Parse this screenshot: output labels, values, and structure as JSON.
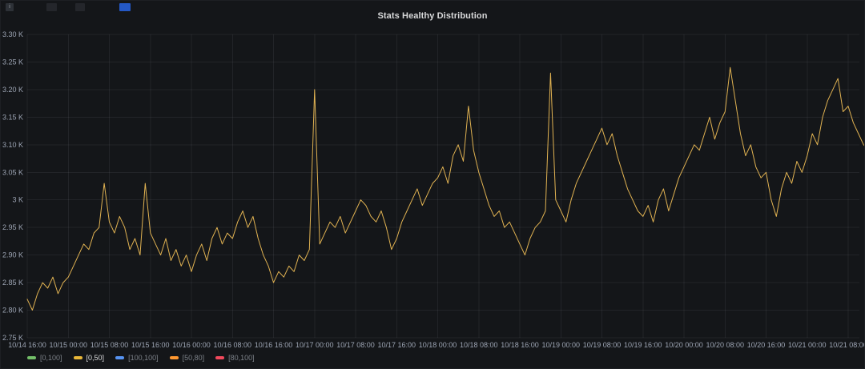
{
  "panel": {
    "title": "Stats Healthy Distribution",
    "chips": [
      {
        "label": "i",
        "color": "#2d3137"
      },
      {
        "label": "",
        "color": "#24262b"
      },
      {
        "label": "",
        "color": "#24262b"
      },
      {
        "label": "",
        "color": "#2458c5"
      }
    ]
  },
  "chart_data": {
    "type": "line",
    "title": "Stats Healthy Distribution",
    "xlabel": "",
    "ylabel": "",
    "grid": true,
    "legend_position": "bottom",
    "x_start": "10/14 16:00",
    "x_step_hours": 1,
    "x_tick_step_hours": 8,
    "x_tick_labels": [
      "10/14 16:00",
      "10/15 00:00",
      "10/15 08:00",
      "10/15 16:00",
      "10/16 00:00",
      "10/16 08:00",
      "10/16 16:00",
      "10/17 00:00",
      "10/17 08:00",
      "10/17 16:00",
      "10/18 00:00",
      "10/18 08:00",
      "10/18 16:00",
      "10/19 00:00",
      "10/19 08:00",
      "10/19 16:00",
      "10/20 00:00",
      "10/20 08:00",
      "10/20 16:00",
      "10/21 00:00",
      "10/21 08:00"
    ],
    "ylim": [
      2.75,
      3.3
    ],
    "y_tick_values": [
      2.75,
      2.8,
      2.85,
      2.9,
      2.95,
      3.0,
      3.05,
      3.1,
      3.15,
      3.2,
      3.25,
      3.3
    ],
    "y_tick_labels": [
      "2.75 K",
      "2.80 K",
      "2.85 K",
      "2.90 K",
      "2.95 K",
      "3 K",
      "3.05 K",
      "3.10 K",
      "3.15 K",
      "3.20 K",
      "3.25 K",
      "3.30 K"
    ],
    "series": [
      {
        "name": "[0,50]",
        "color": "#e0b252",
        "unit": "K",
        "values": [
          2.82,
          2.8,
          2.83,
          2.85,
          2.84,
          2.86,
          2.83,
          2.85,
          2.86,
          2.88,
          2.9,
          2.92,
          2.91,
          2.94,
          2.95,
          3.03,
          2.96,
          2.94,
          2.97,
          2.95,
          2.91,
          2.93,
          2.9,
          3.03,
          2.94,
          2.92,
          2.9,
          2.93,
          2.89,
          2.91,
          2.88,
          2.9,
          2.87,
          2.9,
          2.92,
          2.89,
          2.93,
          2.95,
          2.92,
          2.94,
          2.93,
          2.96,
          2.98,
          2.95,
          2.97,
          2.93,
          2.9,
          2.88,
          2.85,
          2.87,
          2.86,
          2.88,
          2.87,
          2.9,
          2.89,
          2.91,
          3.2,
          2.92,
          2.94,
          2.96,
          2.95,
          2.97,
          2.94,
          2.96,
          2.98,
          3.0,
          2.99,
          2.97,
          2.96,
          2.98,
          2.95,
          2.91,
          2.93,
          2.96,
          2.98,
          3.0,
          3.02,
          2.99,
          3.01,
          3.03,
          3.04,
          3.06,
          3.03,
          3.08,
          3.1,
          3.07,
          3.17,
          3.09,
          3.05,
          3.02,
          2.99,
          2.97,
          2.98,
          2.95,
          2.96,
          2.94,
          2.92,
          2.9,
          2.93,
          2.95,
          2.96,
          2.98,
          3.23,
          3.0,
          2.98,
          2.96,
          3.0,
          3.03,
          3.05,
          3.07,
          3.09,
          3.11,
          3.13,
          3.1,
          3.12,
          3.08,
          3.05,
          3.02,
          3.0,
          2.98,
          2.97,
          2.99,
          2.96,
          3.0,
          3.02,
          2.98,
          3.01,
          3.04,
          3.06,
          3.08,
          3.1,
          3.09,
          3.12,
          3.15,
          3.11,
          3.14,
          3.16,
          3.24,
          3.18,
          3.12,
          3.08,
          3.1,
          3.06,
          3.04,
          3.05,
          3.0,
          2.97,
          3.02,
          3.05,
          3.03,
          3.07,
          3.05,
          3.08,
          3.12,
          3.1,
          3.15,
          3.18,
          3.2,
          3.22,
          3.16,
          3.17,
          3.14,
          3.12,
          3.1,
          3.09
        ]
      }
    ],
    "legend": [
      {
        "label": "[0,100]",
        "color": "#73bf69",
        "active": false
      },
      {
        "label": "[0,50]",
        "color": "#eab839",
        "active": true
      },
      {
        "label": "[100,100]",
        "color": "#5794f2",
        "active": false
      },
      {
        "label": "[50,80]",
        "color": "#ff9830",
        "active": false
      },
      {
        "label": "[80,100]",
        "color": "#f2495c",
        "active": false
      }
    ]
  }
}
